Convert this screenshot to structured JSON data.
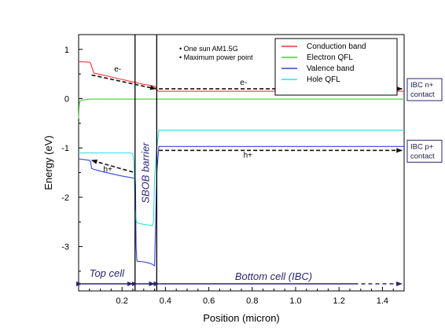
{
  "chart_data": {
    "type": "line",
    "xlabel": "Position (micron)",
    "ylabel": "Energy (eV)",
    "xlim": [
      0,
      1.5
    ],
    "ylim": [
      -3.9,
      1.3
    ],
    "xticks": [
      0.2,
      0.4,
      0.6,
      0.8,
      1.0,
      1.2,
      1.4
    ],
    "xtick_labels": [
      "0.2",
      "0.4",
      "0.6",
      "0.8",
      "1.0",
      "1.2",
      "1.4"
    ],
    "yticks": [
      1,
      0,
      -1,
      -2,
      -3
    ],
    "ytick_labels": [
      "1",
      "0",
      "-1",
      "-2",
      "-3"
    ],
    "grid": false,
    "legend_position": "top-right",
    "conditions": [
      "One sun AM1.5G",
      "Maximum power point"
    ],
    "series": [
      {
        "name": "Conduction band",
        "color": "#ee3333",
        "x": [
          0,
          0.05,
          0.055,
          0.07,
          0.1,
          0.15,
          0.2,
          0.25,
          0.265,
          0.28,
          0.3,
          0.33,
          0.35,
          0.355,
          0.36,
          0.365,
          0.37,
          0.4,
          0.6,
          0.8,
          1.0,
          1.2,
          1.4,
          1.5
        ],
        "y": [
          0.75,
          0.74,
          0.72,
          0.52,
          0.49,
          0.44,
          0.39,
          0.34,
          0.33,
          0.31,
          0.29,
          0.27,
          0.25,
          0.23,
          0.19,
          0.16,
          0.15,
          0.15,
          0.15,
          0.15,
          0.15,
          0.15,
          0.15,
          0.15
        ]
      },
      {
        "name": "Electron QFL",
        "color": "#44cc33",
        "x": [
          0,
          0.003,
          0.006,
          0.015,
          0.03,
          0.05,
          0.1,
          0.2,
          0.3,
          0.4,
          0.6,
          0.8,
          1.0,
          1.2,
          1.4,
          1.5
        ],
        "y": [
          -0.4,
          -0.12,
          -0.05,
          -0.03,
          -0.02,
          -0.01,
          -0.01,
          -0.01,
          -0.01,
          -0.01,
          -0.01,
          -0.01,
          -0.01,
          -0.01,
          -0.01,
          -0.01
        ]
      },
      {
        "name": "Valence band",
        "color": "#3344dd",
        "x": [
          0,
          0.03,
          0.05,
          0.055,
          0.06,
          0.1,
          0.15,
          0.2,
          0.24,
          0.25,
          0.26,
          0.262,
          0.265,
          0.268,
          0.27,
          0.28,
          0.3,
          0.32,
          0.34,
          0.345,
          0.35,
          0.355,
          0.36,
          0.37,
          0.4,
          0.6,
          0.8,
          1.0,
          1.2,
          1.4,
          1.5
        ],
        "y": [
          -1.22,
          -1.24,
          -1.25,
          -1.28,
          -1.42,
          -1.47,
          -1.52,
          -1.57,
          -1.6,
          -1.61,
          -1.62,
          -1.75,
          -3.0,
          -3.27,
          -3.3,
          -3.3,
          -3.31,
          -3.33,
          -3.36,
          -3.38,
          -3.39,
          -2.5,
          -1.5,
          -0.97,
          -0.97,
          -0.97,
          -0.97,
          -0.97,
          -0.97,
          -0.97,
          -0.97
        ]
      },
      {
        "name": "Hole QFL",
        "color": "#33dddd",
        "x": [
          0,
          0.05,
          0.1,
          0.15,
          0.2,
          0.23,
          0.24,
          0.25,
          0.255,
          0.26,
          0.265,
          0.27,
          0.3,
          0.33,
          0.34,
          0.345,
          0.35,
          0.36,
          0.37,
          0.4,
          0.6,
          0.8,
          1.0,
          1.2,
          1.4,
          1.5
        ],
        "y": [
          -1.1,
          -1.1,
          -1.1,
          -1.1,
          -1.1,
          -1.1,
          -1.1,
          -1.12,
          -1.3,
          -2.2,
          -2.45,
          -2.52,
          -2.55,
          -2.57,
          -2.58,
          -2.5,
          -1.6,
          -1.0,
          -0.64,
          -0.64,
          -0.64,
          -0.64,
          -0.64,
          -0.64,
          -0.64,
          -0.64
        ]
      }
    ],
    "region_boundaries_x": [
      0.26,
      0.36
    ],
    "regions": [
      {
        "label": "Top cell",
        "x_range": [
          0.0,
          0.26
        ]
      },
      {
        "label": "SBOB barrier",
        "x_range": [
          0.26,
          0.36
        ]
      },
      {
        "label": "Bottom cell (IBC)",
        "x_range": [
          0.36,
          1.5
        ]
      }
    ],
    "annotations": [
      {
        "text": "e-",
        "x": 0.18,
        "y": 0.55
      },
      {
        "text": "e-",
        "x": 0.76,
        "y": 0.28
      },
      {
        "text": "h+",
        "x": 0.135,
        "y": -1.48
      },
      {
        "text": "h+",
        "x": 0.78,
        "y": -1.2
      }
    ],
    "carrier_arrows": [
      {
        "x": [
          0.06,
          0.355
        ],
        "y": [
          0.48,
          0.2
        ]
      },
      {
        "x": [
          0.37,
          1.49
        ],
        "y": [
          0.2,
          0.2
        ]
      },
      {
        "x": [
          0.25,
          0.06
        ],
        "y": [
          -1.49,
          -1.25
        ]
      },
      {
        "x": [
          0.37,
          1.49
        ],
        "y": [
          -1.05,
          -1.05
        ]
      }
    ],
    "contacts": [
      {
        "label": [
          "IBC n+",
          "contact"
        ],
        "y": 0.2
      },
      {
        "label": [
          "IBC p+",
          "contact"
        ],
        "y": -1.05
      }
    ]
  }
}
